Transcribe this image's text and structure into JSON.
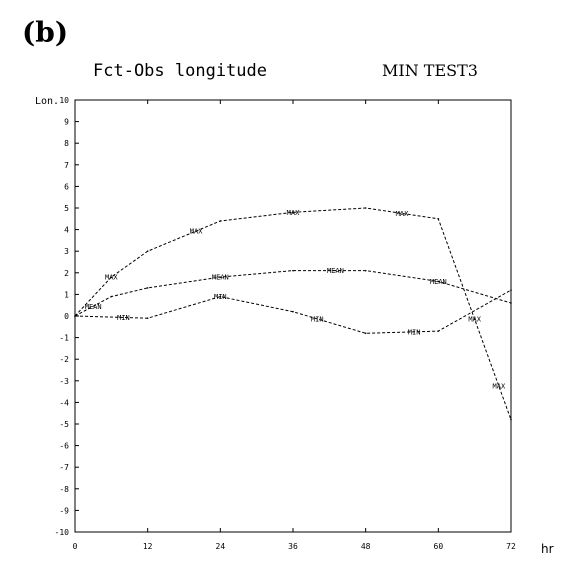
{
  "panel_label": "(b)",
  "chart_data": {
    "type": "line",
    "title": "Fct-Obs longitude",
    "subtitle": "MIN TEST3",
    "ylabel": "Lon.",
    "xlabel": "hr",
    "x": [
      0,
      12,
      24,
      36,
      48,
      60,
      72
    ],
    "x_tick_labels": [
      "0",
      "12",
      "24",
      "36",
      "48",
      "60",
      "72"
    ],
    "y_tick_values": [
      10,
      9,
      8,
      7,
      6,
      5,
      4,
      3,
      2,
      1,
      0,
      -1,
      -2,
      -3,
      -4,
      -5,
      -6,
      -7,
      -8,
      -9,
      -10
    ],
    "xlim": [
      0,
      72
    ],
    "ylim": [
      -10,
      10
    ],
    "grid": false,
    "series": [
      {
        "name": "MAX",
        "label_x": [
          6,
          20,
          36,
          54,
          66,
          70
        ],
        "x": [
          0,
          6,
          12,
          24,
          36,
          48,
          60,
          72
        ],
        "values": [
          0,
          1.8,
          3.0,
          4.4,
          4.8,
          5.0,
          4.5,
          -4.8
        ]
      },
      {
        "name": "MEAN",
        "label_x": [
          3,
          24,
          43,
          60
        ],
        "x": [
          0,
          6,
          12,
          24,
          36,
          48,
          60,
          72
        ],
        "values": [
          0,
          0.9,
          1.3,
          1.8,
          2.1,
          2.1,
          1.6,
          0.6
        ]
      },
      {
        "name": "MIN",
        "label_x": [
          8,
          24,
          40,
          56
        ],
        "x": [
          0,
          12,
          24,
          36,
          48,
          60,
          72
        ],
        "values": [
          0,
          -0.1,
          0.9,
          0.2,
          -0.8,
          -0.7,
          1.2
        ]
      }
    ]
  }
}
